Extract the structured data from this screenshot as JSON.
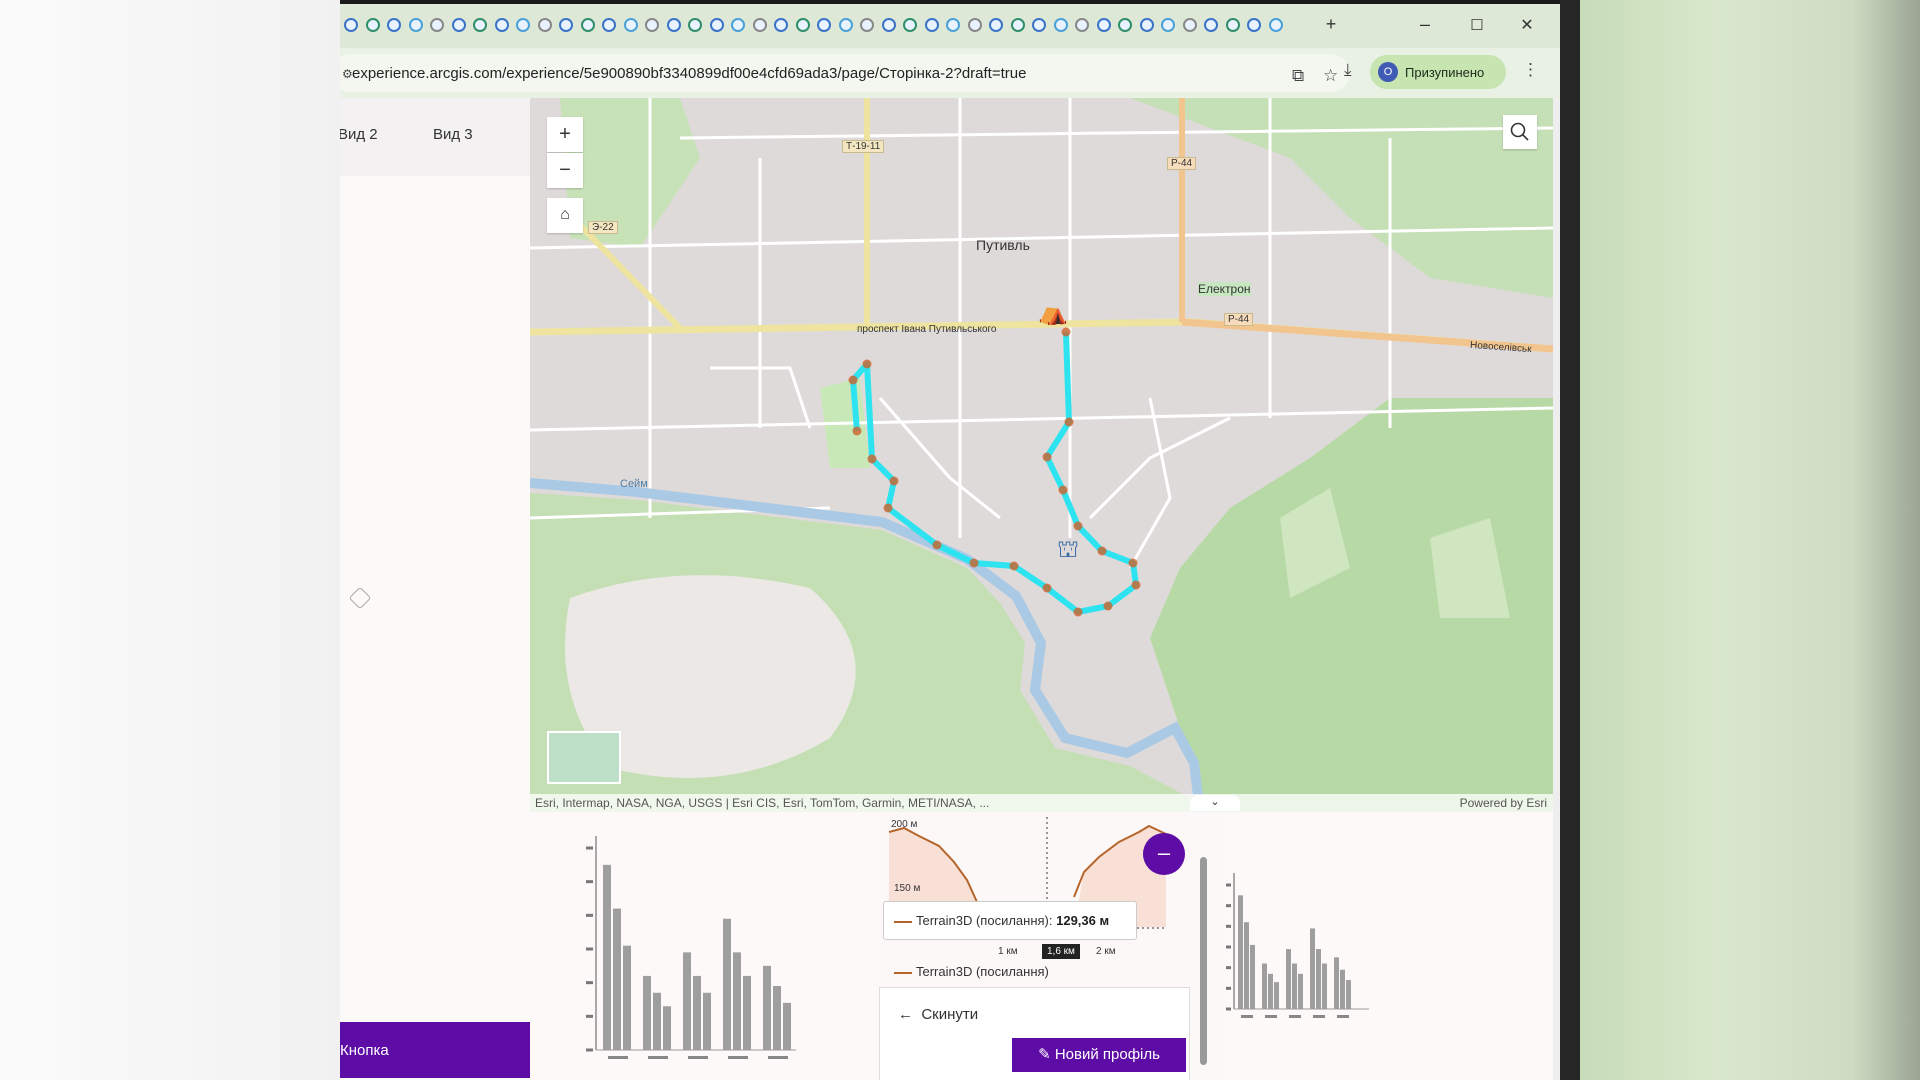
{
  "browser": {
    "new_tab": "+",
    "window_controls": {
      "minimize": "–",
      "maximize": "☐",
      "close": "✕"
    },
    "url": "experience.arcgis.com/experience/5e900890bf3340899df00e4cfd69ada3/page/Сторінка-2?draft=true",
    "profile": {
      "avatar_letter": "О",
      "label": "Призупинено"
    },
    "icons": [
      "site-info-icon",
      "translate-icon",
      "star-icon",
      "download-icon",
      "menu-icon"
    ]
  },
  "sidebar": {
    "view_tabs": [
      {
        "label": "Вид 2"
      },
      {
        "label": "Вид 3"
      }
    ],
    "button_label": "Кнопка"
  },
  "map": {
    "zoom_in": "+",
    "zoom_out": "−",
    "labels": {
      "city": "Путивль",
      "road_t1911": "Т-19-11",
      "road_p44_north": "Р-44",
      "road_p44": "Р-44",
      "road_e22": "Э-22",
      "stadium": "Електрон",
      "street": "проспект Івана Путивльського",
      "river": "Сейм",
      "novoselivska": "Новоселівськ"
    },
    "attribution": "Esri, Intermap, NASA, NGA, USGS | Esri CIS, Esri, TomTom, Garmin, METI/NASA, ...",
    "powered_by": "Powered by Esri",
    "colors": {
      "route": "#2ee3f0",
      "route_points": "#d0622a",
      "water": "#a9c9e4",
      "park": "#bfe0b0"
    }
  },
  "elevation_profile": {
    "y_labels": [
      "200 м",
      "150 м"
    ],
    "x_labels": [
      "1 км",
      "1,6 км",
      "2 км"
    ],
    "tooltip_series": "Terrain3D (посилання):",
    "tooltip_value": "129,36 м",
    "legend": "Terrain3D (посилання)",
    "reset_label": "Скинути",
    "new_profile_label": "Новий профіль",
    "line_color": "#b5652a"
  },
  "chart_data": [
    {
      "type": "bar",
      "categories": [
        "",
        "",
        "",
        "",
        ""
      ],
      "series": [
        {
          "values": [
            5.5,
            2.2,
            2.9,
            3.9,
            2.5
          ]
        },
        {
          "values": [
            4.2,
            1.7,
            2.2,
            2.9,
            1.9
          ]
        },
        {
          "values": [
            3.1,
            1.3,
            1.7,
            2.2,
            1.4
          ]
        }
      ],
      "ylim": [
        0,
        6
      ],
      "color": "#9e9e9e"
    },
    {
      "type": "bar",
      "categories": [
        "",
        "",
        "",
        "",
        ""
      ],
      "series": [
        {
          "values": [
            5.5,
            2.2,
            2.9,
            3.9,
            2.5
          ]
        },
        {
          "values": [
            4.2,
            1.7,
            2.2,
            2.9,
            1.9
          ]
        },
        {
          "values": [
            3.1,
            1.3,
            1.7,
            2.2,
            1.4
          ]
        }
      ],
      "ylim": [
        0,
        6
      ],
      "color": "#9e9e9e"
    }
  ]
}
